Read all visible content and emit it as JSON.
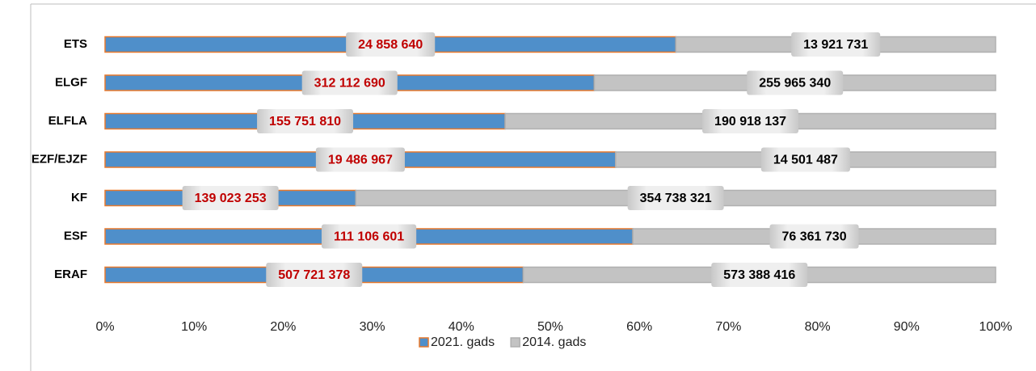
{
  "chart_data": {
    "type": "bar",
    "orientation": "horizontal",
    "stack": "percent",
    "categories": [
      "ETS",
      "ELGF",
      "ELFLA",
      "EZF/EJZF",
      "KF",
      "ESF",
      "ERAF"
    ],
    "series": [
      {
        "name": "2021. gads",
        "color": "#4f8fca",
        "edge_color": "#e8792c",
        "label_color": "#c00000",
        "values": [
          24858640,
          312112690,
          155751810,
          19486967,
          139023253,
          111106601,
          507721378
        ],
        "value_labels": [
          "24 858 640",
          "312 112 690",
          "155 751 810",
          "19 486 967",
          "139 023 253",
          "111 106 601",
          "507 721 378"
        ]
      },
      {
        "name": "2014. gads",
        "color": "#c3c3c3",
        "edge_color": "#b0b0b0",
        "label_color": "#000000",
        "values": [
          13921731,
          255965340,
          190918137,
          14501487,
          354738321,
          76361730,
          573388416
        ],
        "value_labels": [
          "13 921 731",
          "255 965 340",
          "190 918 137",
          "14 501 487",
          "354 738 321",
          "76 361 730",
          "573 388 416"
        ]
      }
    ],
    "xlim": [
      0,
      100
    ],
    "xticks": [
      {
        "value": 0,
        "label": "0%"
      },
      {
        "value": 10,
        "label": "10%"
      },
      {
        "value": 20,
        "label": "20%"
      },
      {
        "value": 30,
        "label": "30%"
      },
      {
        "value": 40,
        "label": "40%"
      },
      {
        "value": 50,
        "label": "50%"
      },
      {
        "value": 60,
        "label": "60%"
      },
      {
        "value": 70,
        "label": "70%"
      },
      {
        "value": 80,
        "label": "80%"
      },
      {
        "value": 90,
        "label": "90%"
      },
      {
        "value": 100,
        "label": "100%"
      }
    ],
    "grid": false,
    "legend": "bottom"
  }
}
